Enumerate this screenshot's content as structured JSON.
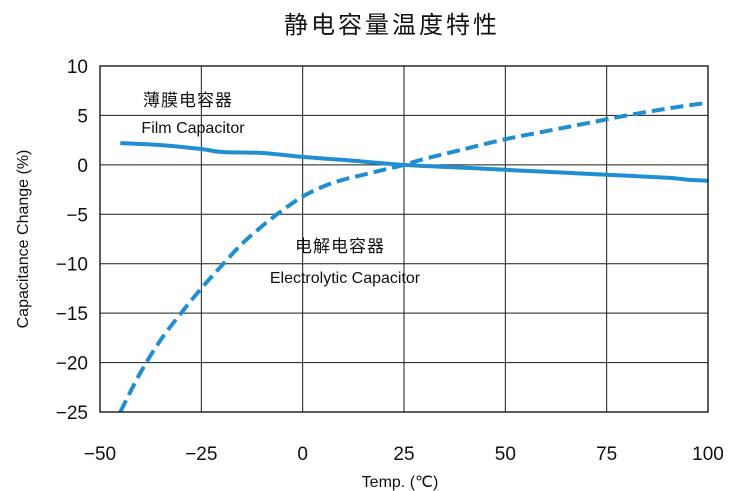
{
  "chart_data": {
    "type": "line",
    "title": "静电容量温度特性",
    "xlabel": "Temp. (℃)",
    "ylabel": "Capacitance Change (%)",
    "xlim": [
      -50,
      100
    ],
    "ylim": [
      -25,
      10
    ],
    "x_ticks": [
      "−50",
      "−25",
      "0",
      "25",
      "50",
      "75",
      "100"
    ],
    "y_ticks": [
      "10",
      "5",
      "0",
      "−5",
      "−10",
      "−15",
      "−20",
      "−25"
    ],
    "grid": true,
    "series": [
      {
        "name": "薄膜电容器",
        "name_en": "Film Capacitor",
        "color": "#1f8fd2",
        "style": "solid",
        "x": [
          -45,
          -35,
          -25,
          -20,
          -10,
          0,
          10,
          25,
          40,
          50,
          60,
          75,
          90,
          95,
          100
        ],
        "y": [
          2.2,
          2.0,
          1.6,
          1.3,
          1.2,
          0.8,
          0.5,
          0.0,
          -0.3,
          -0.5,
          -0.7,
          -1.0,
          -1.3,
          -1.5,
          -1.6
        ]
      },
      {
        "name": "电解电容器",
        "name_en": "Electrolytic Capacitor",
        "color": "#1f8fd2",
        "style": "dashed",
        "x": [
          -45,
          -40,
          -35,
          -30,
          -25,
          -20,
          -15,
          -10,
          -5,
          0,
          5,
          10,
          15,
          20,
          25,
          30,
          40,
          50,
          60,
          70,
          80,
          90,
          100
        ],
        "y": [
          -25,
          -21,
          -17.7,
          -15,
          -12.5,
          -10.2,
          -8,
          -6.2,
          -4.6,
          -3.2,
          -2.2,
          -1.5,
          -1.0,
          -0.5,
          0.0,
          0.6,
          1.6,
          2.6,
          3.4,
          4.2,
          5.0,
          5.7,
          6.3
        ]
      }
    ]
  }
}
